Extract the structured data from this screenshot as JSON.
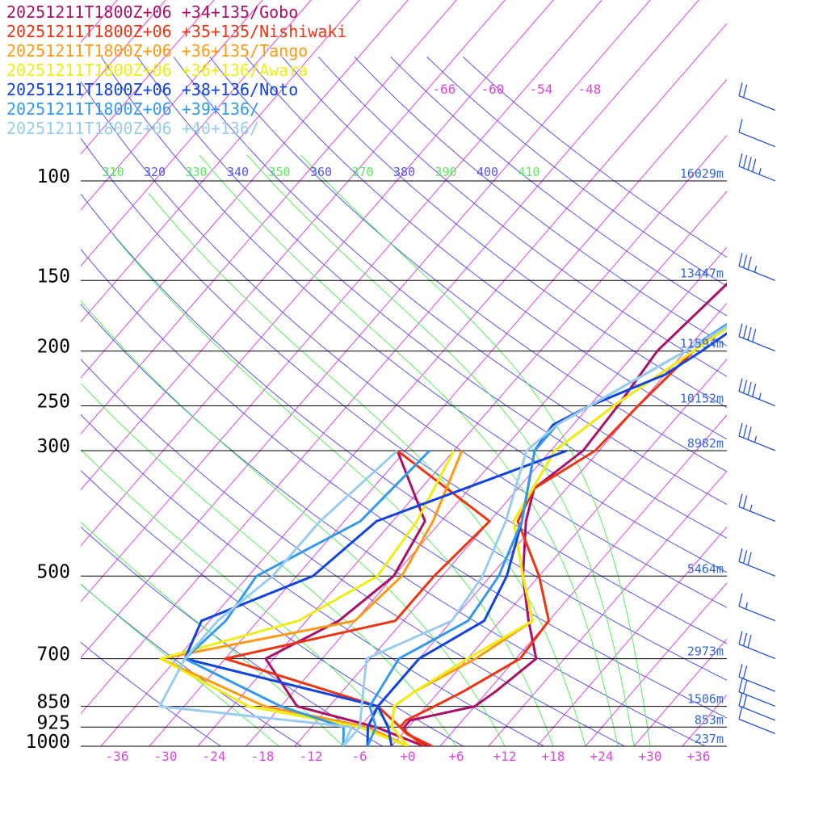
{
  "chart_data": {
    "type": "line",
    "subtype": "skew-t log-p sounding",
    "colors": {
      "isotherm": "#dd44dd",
      "theta": "#5555ee",
      "theta_e": "#55ee55",
      "pressure_line": "#000000",
      "height_label": "#3366dd",
      "temp_tick": "#dd44dd"
    },
    "y_axis": {
      "scale": "log",
      "unit": "hPa",
      "range": [
        1000,
        80
      ],
      "ticks": [
        {
          "p": 100,
          "label": "100",
          "height": "16029m"
        },
        {
          "p": 150,
          "label": "150",
          "height": "13447m"
        },
        {
          "p": 200,
          "label": "200",
          "height": "11594m"
        },
        {
          "p": 250,
          "label": "250",
          "height": "10152m"
        },
        {
          "p": 300,
          "label": "300",
          "height": "8982m"
        },
        {
          "p": 500,
          "label": "500",
          "height": "5464m"
        },
        {
          "p": 700,
          "label": "700",
          "height": "2973m"
        },
        {
          "p": 850,
          "label": "850",
          "height": "1506m"
        },
        {
          "p": 925,
          "label": "925",
          "height": "853m"
        },
        {
          "p": 1000,
          "label": "1000",
          "height": "237m"
        }
      ]
    },
    "x_axis": {
      "unit": "°C",
      "range": [
        -40,
        40
      ],
      "ticks": [
        "-36",
        "-30",
        "-24",
        "-18",
        "-12",
        "-6",
        "+0",
        "+6",
        "+12",
        "+18",
        "+24",
        "+30",
        "+36"
      ],
      "upper_isotherm_labels": [
        "-66",
        "-60",
        "-54",
        "-48"
      ]
    },
    "theta_labels": [
      "310",
      "320",
      "330",
      "340",
      "350",
      "360",
      "370",
      "380",
      "390",
      "400",
      "410"
    ],
    "series": [
      {
        "name": "20251211T1800Z+06 +34+135/Gobo",
        "color": "#aa1166",
        "temperature": [
          [
            1000,
            2.5
          ],
          [
            950,
            -1.5
          ],
          [
            925,
            -2.5
          ],
          [
            900,
            -2.5
          ],
          [
            850,
            4
          ],
          [
            800,
            5
          ],
          [
            700,
            6.5
          ],
          [
            600,
            1.5
          ],
          [
            500,
            -4
          ],
          [
            400,
            -9.5
          ],
          [
            350,
            -12
          ],
          [
            300,
            -10
          ],
          [
            250,
            -10.5
          ],
          [
            200,
            -11.5
          ],
          [
            150,
            -10
          ],
          [
            120,
            -7
          ],
          [
            100,
            -4
          ],
          [
            75,
            3
          ],
          [
            60,
            14
          ]
        ],
        "dewpoint": [
          [
            1000,
            2
          ],
          [
            925,
            -6
          ],
          [
            850,
            -18
          ],
          [
            700,
            -27
          ],
          [
            600,
            -22
          ],
          [
            500,
            -20
          ],
          [
            400,
            -22
          ],
          [
            300,
            -33
          ]
        ]
      },
      {
        "name": "20251211T1800Z+06 +35+135/Nishiwaki",
        "color": "#ee3311",
        "temperature": [
          [
            1000,
            3
          ],
          [
            950,
            -1.5
          ],
          [
            925,
            -3
          ],
          [
            900,
            -3
          ],
          [
            850,
            -1
          ],
          [
            800,
            1
          ],
          [
            700,
            4.5
          ],
          [
            600,
            4
          ],
          [
            500,
            -2
          ],
          [
            400,
            -10.5
          ],
          [
            350,
            -12
          ],
          [
            300,
            -8.5
          ],
          [
            250,
            -8
          ],
          [
            200,
            -7
          ],
          [
            150,
            -3
          ],
          [
            120,
            0
          ],
          [
            100,
            4
          ],
          [
            75,
            11
          ],
          [
            60,
            22
          ]
        ],
        "dewpoint": [
          [
            1000,
            2
          ],
          [
            925,
            -3
          ],
          [
            850,
            -8
          ],
          [
            700,
            -32
          ],
          [
            600,
            -15
          ],
          [
            500,
            -15
          ],
          [
            400,
            -14
          ],
          [
            300,
            -33
          ]
        ]
      },
      {
        "name": "20251211T1800Z+06 +36+135/Tango",
        "color": "#ff9911",
        "temperature": [
          [
            1000,
            0
          ],
          [
            925,
            -4
          ],
          [
            850,
            -6
          ],
          [
            800,
            -5
          ],
          [
            700,
            -1
          ],
          [
            600,
            2
          ],
          [
            500,
            -4
          ],
          [
            400,
            -11
          ],
          [
            300,
            -13.5
          ],
          [
            250,
            -11
          ],
          [
            200,
            -7
          ],
          [
            150,
            -2
          ],
          [
            120,
            5
          ],
          [
            100,
            10
          ],
          [
            75,
            19
          ],
          [
            60,
            29
          ]
        ],
        "dewpoint": [
          [
            1000,
            0
          ],
          [
            925,
            -7
          ],
          [
            850,
            -22
          ],
          [
            700,
            -40
          ],
          [
            600,
            -20
          ],
          [
            500,
            -19
          ],
          [
            400,
            -21
          ],
          [
            300,
            -25
          ]
        ]
      },
      {
        "name": "20251211T1800Z+06 +36+136/Awara",
        "color": "#eeee11",
        "temperature": [
          [
            1000,
            0
          ],
          [
            925,
            -4
          ],
          [
            850,
            -6
          ],
          [
            800,
            -5
          ],
          [
            700,
            -2
          ],
          [
            600,
            2
          ],
          [
            500,
            -4
          ],
          [
            400,
            -11
          ],
          [
            300,
            -13.5
          ],
          [
            250,
            -11
          ],
          [
            200,
            -7
          ],
          [
            150,
            -2
          ],
          [
            120,
            5
          ],
          [
            100,
            10
          ],
          [
            80,
            13
          ],
          [
            60,
            29
          ]
        ],
        "dewpoint": [
          [
            1000,
            0
          ],
          [
            925,
            -8
          ],
          [
            850,
            -24
          ],
          [
            700,
            -40
          ],
          [
            600,
            -27
          ],
          [
            500,
            -22
          ],
          [
            400,
            -23
          ],
          [
            300,
            -26
          ]
        ]
      },
      {
        "name": "20251211T1800Z+06 +38+136/Noto",
        "color": "#1144dd",
        "temperature": [
          [
            1000,
            -2
          ],
          [
            925,
            -4.5
          ],
          [
            850,
            -8
          ],
          [
            700,
            -8
          ],
          [
            600,
            -4
          ],
          [
            500,
            -6
          ],
          [
            400,
            -10
          ],
          [
            300,
            -16
          ],
          [
            270,
            -16.5
          ],
          [
            250,
            -14
          ],
          [
            220,
            -8
          ],
          [
            200,
            -6
          ],
          [
            150,
            -1
          ],
          [
            120,
            4
          ],
          [
            100,
            9
          ],
          [
            80,
            16
          ],
          [
            60,
            26
          ]
        ],
        "dewpoint": [
          [
            1000,
            -5
          ],
          [
            925,
            -7
          ],
          [
            850,
            -8
          ],
          [
            700,
            -37
          ],
          [
            600,
            -39
          ],
          [
            500,
            -30
          ],
          [
            400,
            -28
          ],
          [
            300,
            -12
          ]
        ]
      },
      {
        "name": "20251211T1800Z+06 +39+136/",
        "color": "#3399ee",
        "temperature": [
          [
            1000,
            -5
          ],
          [
            925,
            -6
          ],
          [
            850,
            -9
          ],
          [
            700,
            -10.5
          ],
          [
            600,
            -6
          ],
          [
            500,
            -7
          ],
          [
            400,
            -10
          ],
          [
            300,
            -16
          ],
          [
            270,
            -16
          ],
          [
            250,
            -14
          ],
          [
            200,
            -8
          ],
          [
            150,
            -2
          ],
          [
            120,
            6
          ],
          [
            100,
            12
          ],
          [
            80,
            21
          ],
          [
            60,
            30
          ]
        ],
        "dewpoint": [
          [
            1000,
            -8
          ],
          [
            925,
            -10
          ],
          [
            850,
            -20
          ],
          [
            700,
            -37
          ],
          [
            600,
            -36
          ],
          [
            500,
            -37
          ],
          [
            400,
            -30
          ],
          [
            300,
            -29
          ]
        ]
      },
      {
        "name": "20251211T1800Z+06 +40+136/",
        "color": "#99ccee",
        "temperature": [
          [
            1000,
            -8
          ],
          [
            925,
            -8
          ],
          [
            850,
            -10
          ],
          [
            700,
            -14.5
          ],
          [
            600,
            -8
          ],
          [
            500,
            -9
          ],
          [
            400,
            -12
          ],
          [
            300,
            -17
          ],
          [
            270,
            -16
          ],
          [
            250,
            -14
          ],
          [
            200,
            -8
          ],
          [
            150,
            -1
          ],
          [
            120,
            8
          ],
          [
            100,
            14
          ],
          [
            80,
            23
          ],
          [
            65,
            36
          ],
          [
            60,
            36
          ]
        ],
        "dewpoint": [
          [
            1000,
            -8
          ],
          [
            925,
            -9
          ],
          [
            850,
            -35
          ],
          [
            700,
            -37
          ],
          [
            600,
            -37
          ],
          [
            500,
            -35
          ],
          [
            400,
            -35
          ],
          [
            300,
            -33
          ]
        ]
      }
    ],
    "wind_barbs": [
      {
        "p": 75,
        "flags": 0,
        "full": 2,
        "half": 0
      },
      {
        "p": 87,
        "flags": 0,
        "full": 1,
        "half": 0
      },
      {
        "p": 100,
        "flags": 0,
        "full": 4,
        "half": 1
      },
      {
        "p": 150,
        "flags": 0,
        "full": 3,
        "half": 1
      },
      {
        "p": 200,
        "flags": 0,
        "full": 4,
        "half": 0
      },
      {
        "p": 250,
        "flags": 0,
        "full": 4,
        "half": 1
      },
      {
        "p": 300,
        "flags": 0,
        "full": 3,
        "half": 1
      },
      {
        "p": 400,
        "flags": 0,
        "full": 2,
        "half": 1
      },
      {
        "p": 500,
        "flags": 0,
        "full": 3,
        "half": 0
      },
      {
        "p": 600,
        "flags": 0,
        "full": 1,
        "half": 1
      },
      {
        "p": 700,
        "flags": 0,
        "full": 3,
        "half": 0
      },
      {
        "p": 800,
        "flags": 0,
        "full": 2,
        "half": 0
      },
      {
        "p": 850,
        "flags": 0,
        "full": 2,
        "half": 0
      },
      {
        "p": 900,
        "flags": 0,
        "full": 2,
        "half": 0
      },
      {
        "p": 950,
        "flags": 0,
        "full": 1,
        "half": 0
      }
    ]
  }
}
